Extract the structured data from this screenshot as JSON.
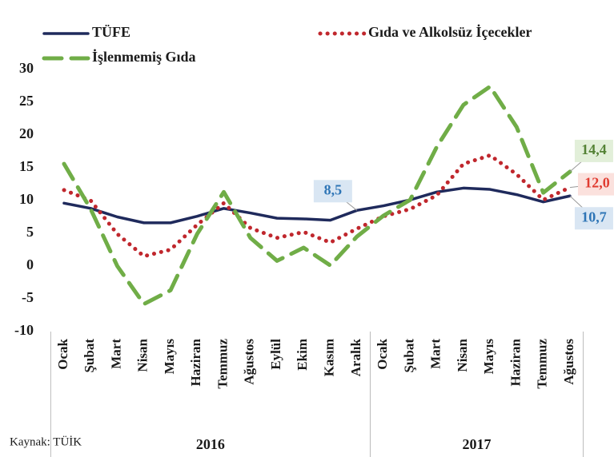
{
  "chart_data": {
    "type": "line",
    "categories": [
      "Ocak",
      "Şubat",
      "Mart",
      "Nisan",
      "Mayıs",
      "Haziran",
      "Temmuz",
      "Ağustos",
      "Eylül",
      "Ekim",
      "Kasım",
      "Aralık",
      "Ocak",
      "Şubat",
      "Mart",
      "Nisan",
      "Mayıs",
      "Haziran",
      "Temmuz",
      "Ağustos"
    ],
    "groups": [
      {
        "label": "2016",
        "count": 12
      },
      {
        "label": "2017",
        "count": 8
      }
    ],
    "series": [
      {
        "name": "TÜFE",
        "color": "#1f2a5c",
        "style": "solid",
        "values": [
          9.6,
          8.8,
          7.5,
          6.6,
          6.6,
          7.6,
          8.8,
          8.1,
          7.3,
          7.2,
          7.0,
          8.5,
          9.2,
          10.1,
          11.3,
          11.9,
          11.7,
          10.9,
          9.8,
          10.7
        ],
        "value_labels": [
          null,
          null,
          null,
          null,
          null,
          null,
          null,
          null,
          null,
          null,
          null,
          "8,5",
          null,
          null,
          null,
          null,
          null,
          null,
          null,
          "10,7"
        ]
      },
      {
        "name": "Gıda ve Alkolsüz İçecekler",
        "color": "#c0272d",
        "style": "dotted",
        "values": [
          11.6,
          10.0,
          4.9,
          1.5,
          2.5,
          6.3,
          9.6,
          5.8,
          4.3,
          5.2,
          3.6,
          5.7,
          7.6,
          8.7,
          10.8,
          15.6,
          16.9,
          14.0,
          10.1,
          12.0
        ],
        "value_labels": [
          null,
          null,
          null,
          null,
          null,
          null,
          null,
          null,
          null,
          null,
          null,
          null,
          null,
          null,
          null,
          null,
          null,
          null,
          null,
          "12,0"
        ]
      },
      {
        "name": "İşlenmemiş Gıda",
        "color": "#70ad47",
        "style": "dashed",
        "values": [
          15.6,
          8.7,
          0.0,
          -5.8,
          -3.7,
          4.9,
          11.3,
          4.3,
          0.8,
          2.8,
          0.1,
          4.5,
          7.7,
          10.1,
          18.2,
          24.6,
          27.4,
          21.2,
          11.2,
          14.4
        ],
        "value_labels": [
          null,
          null,
          null,
          null,
          null,
          null,
          null,
          null,
          null,
          null,
          null,
          null,
          null,
          null,
          null,
          null,
          null,
          null,
          null,
          "14,4"
        ]
      }
    ],
    "ylim": [
      -10,
      30
    ],
    "yticks": [
      -10,
      -5,
      0,
      5,
      10,
      15,
      20,
      25,
      30
    ],
    "source": "Kaynak: TÜİK"
  }
}
